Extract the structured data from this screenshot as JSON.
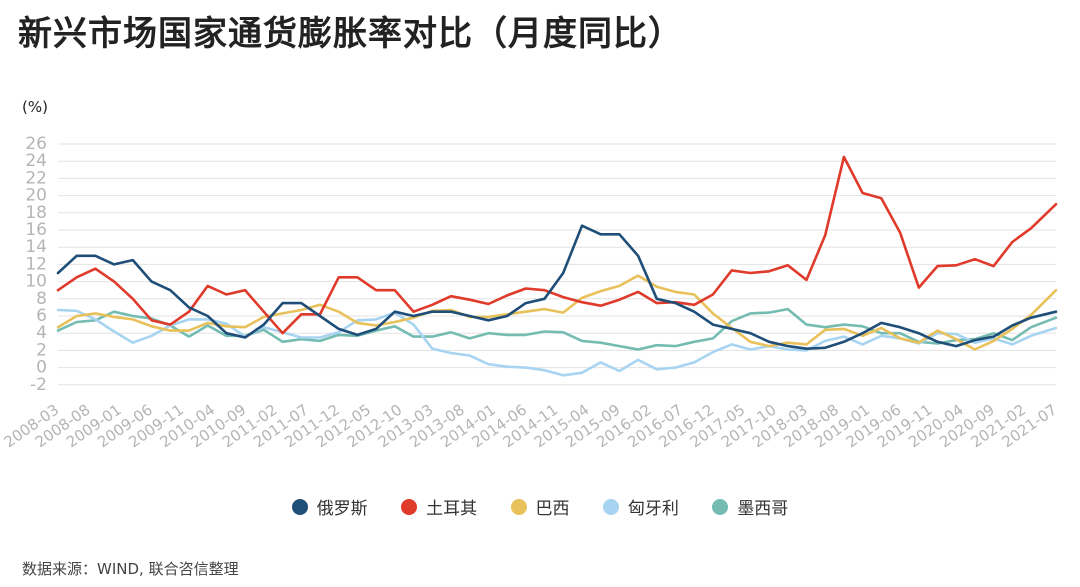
{
  "title": "新兴市场国家通货膨胀率对比（月度同比）",
  "source": "数据来源：WIND, 联合咨信整理",
  "colors": {
    "russia": "#1f4e79",
    "turkey": "#e03a2b",
    "brazil": "#e8c15a",
    "hungary": "#a7d4f0",
    "mexico": "#74bcb2"
  },
  "chart_data": {
    "type": "line",
    "ylabel": "(%)",
    "ylim": [
      -4,
      26
    ],
    "yticks": [
      -2,
      0,
      2,
      4,
      6,
      8,
      10,
      12,
      14,
      16,
      18,
      20,
      22,
      24,
      26
    ],
    "grid": "horizontal",
    "legend_position": "bottom",
    "x_start": "2008-03",
    "x_end": "2021-07",
    "x_tick_labels": [
      "2008-03",
      "2008-08",
      "2009-01",
      "2009-06",
      "2009-11",
      "2010-04",
      "2010-09",
      "2011-02",
      "2011-07",
      "2011-12",
      "2012-05",
      "2012-10",
      "2013-03",
      "2013-08",
      "2014-01",
      "2014-06",
      "2014-11",
      "2015-04",
      "2015-09",
      "2016-02",
      "2016-07",
      "2016-12",
      "2017-05",
      "2017-10",
      "2018-03",
      "2018-08",
      "2019-01",
      "2019-06",
      "2019-11",
      "2020-04",
      "2020-09",
      "2021-02",
      "2021-07"
    ],
    "series": [
      {
        "name": "俄罗斯",
        "color_key": "russia",
        "x": [
          "2008-03",
          "2008-06",
          "2008-09",
          "2008-12",
          "2009-03",
          "2009-06",
          "2009-09",
          "2009-12",
          "2010-03",
          "2010-06",
          "2010-09",
          "2010-12",
          "2011-03",
          "2011-06",
          "2011-09",
          "2011-12",
          "2012-03",
          "2012-06",
          "2012-09",
          "2012-12",
          "2013-03",
          "2013-06",
          "2013-09",
          "2013-12",
          "2014-03",
          "2014-06",
          "2014-09",
          "2014-12",
          "2015-03",
          "2015-06",
          "2015-09",
          "2015-12",
          "2016-03",
          "2016-06",
          "2016-09",
          "2016-12",
          "2017-03",
          "2017-06",
          "2017-09",
          "2017-12",
          "2018-03",
          "2018-06",
          "2018-09",
          "2018-12",
          "2019-03",
          "2019-06",
          "2019-09",
          "2019-12",
          "2020-03",
          "2020-06",
          "2020-09",
          "2020-12",
          "2021-03",
          "2021-07"
        ],
        "values": [
          11.0,
          13.0,
          13.0,
          12.0,
          12.5,
          10.0,
          9.0,
          7.0,
          6.0,
          4.0,
          3.5,
          5.0,
          7.5,
          7.5,
          6.0,
          4.5,
          3.8,
          4.5,
          6.5,
          6.0,
          6.5,
          6.5,
          6.0,
          5.5,
          6.0,
          7.5,
          8.0,
          11.0,
          16.5,
          15.5,
          15.5,
          13.0,
          8.0,
          7.5,
          6.5,
          5.0,
          4.5,
          4.0,
          3.0,
          2.5,
          2.2,
          2.3,
          3.0,
          4.0,
          5.2,
          4.7,
          4.0,
          3.0,
          2.5,
          3.2,
          3.6,
          4.9,
          5.8,
          6.5
        ]
      },
      {
        "name": "土耳其",
        "color_key": "turkey",
        "x": [
          "2008-03",
          "2008-06",
          "2008-09",
          "2008-12",
          "2009-03",
          "2009-06",
          "2009-09",
          "2009-12",
          "2010-03",
          "2010-06",
          "2010-09",
          "2010-12",
          "2011-03",
          "2011-06",
          "2011-09",
          "2011-12",
          "2012-03",
          "2012-06",
          "2012-09",
          "2012-12",
          "2013-03",
          "2013-06",
          "2013-09",
          "2013-12",
          "2014-03",
          "2014-06",
          "2014-09",
          "2014-12",
          "2015-03",
          "2015-06",
          "2015-09",
          "2015-12",
          "2016-03",
          "2016-06",
          "2016-09",
          "2016-12",
          "2017-03",
          "2017-06",
          "2017-09",
          "2017-12",
          "2018-03",
          "2018-06",
          "2018-09",
          "2018-12",
          "2019-03",
          "2019-06",
          "2019-09",
          "2019-12",
          "2020-03",
          "2020-06",
          "2020-09",
          "2020-12",
          "2021-03",
          "2021-07"
        ],
        "values": [
          9.0,
          10.5,
          11.5,
          10.0,
          8.0,
          5.5,
          5.0,
          6.5,
          9.5,
          8.5,
          9.0,
          6.5,
          4.0,
          6.2,
          6.2,
          10.5,
          10.5,
          9.0,
          9.0,
          6.5,
          7.3,
          8.3,
          7.9,
          7.4,
          8.4,
          9.2,
          9.0,
          8.2,
          7.6,
          7.2,
          7.9,
          8.8,
          7.5,
          7.6,
          7.3,
          8.5,
          11.3,
          11.0,
          11.2,
          11.9,
          10.2,
          15.4,
          24.5,
          20.3,
          19.7,
          15.7,
          9.3,
          11.8,
          11.9,
          12.6,
          11.8,
          14.6,
          16.2,
          19.0
        ]
      },
      {
        "name": "巴西",
        "color_key": "brazil",
        "x": [
          "2008-03",
          "2008-06",
          "2008-09",
          "2008-12",
          "2009-03",
          "2009-06",
          "2009-09",
          "2009-12",
          "2010-03",
          "2010-06",
          "2010-09",
          "2010-12",
          "2011-03",
          "2011-06",
          "2011-09",
          "2011-12",
          "2012-03",
          "2012-06",
          "2012-09",
          "2012-12",
          "2013-03",
          "2013-06",
          "2013-09",
          "2013-12",
          "2014-03",
          "2014-06",
          "2014-09",
          "2014-12",
          "2015-03",
          "2015-06",
          "2015-09",
          "2015-12",
          "2016-03",
          "2016-06",
          "2016-09",
          "2016-12",
          "2017-03",
          "2017-06",
          "2017-09",
          "2017-12",
          "2018-03",
          "2018-06",
          "2018-09",
          "2018-12",
          "2019-03",
          "2019-06",
          "2019-09",
          "2019-12",
          "2020-03",
          "2020-06",
          "2020-09",
          "2020-12",
          "2021-03",
          "2021-07"
        ],
        "values": [
          4.7,
          6.0,
          6.3,
          5.9,
          5.6,
          4.8,
          4.3,
          4.3,
          5.2,
          4.8,
          4.7,
          5.9,
          6.3,
          6.7,
          7.3,
          6.5,
          5.2,
          4.9,
          5.3,
          5.8,
          6.6,
          6.7,
          5.9,
          5.9,
          6.2,
          6.5,
          6.8,
          6.4,
          8.1,
          8.9,
          9.5,
          10.7,
          9.4,
          8.8,
          8.5,
          6.3,
          4.6,
          3.0,
          2.5,
          2.9,
          2.7,
          4.4,
          4.5,
          3.7,
          4.6,
          3.4,
          2.9,
          4.3,
          3.3,
          2.1,
          3.1,
          4.5,
          6.1,
          9.0
        ]
      },
      {
        "name": "匈牙利",
        "color_key": "hungary",
        "x": [
          "2008-03",
          "2008-06",
          "2008-09",
          "2008-12",
          "2009-03",
          "2009-06",
          "2009-09",
          "2009-12",
          "2010-03",
          "2010-06",
          "2010-09",
          "2010-12",
          "2011-03",
          "2011-06",
          "2011-09",
          "2011-12",
          "2012-03",
          "2012-06",
          "2012-09",
          "2012-12",
          "2013-03",
          "2013-06",
          "2013-09",
          "2013-12",
          "2014-03",
          "2014-06",
          "2014-09",
          "2014-12",
          "2015-03",
          "2015-06",
          "2015-09",
          "2015-12",
          "2016-03",
          "2016-06",
          "2016-09",
          "2016-12",
          "2017-03",
          "2017-06",
          "2017-09",
          "2017-12",
          "2018-03",
          "2018-06",
          "2018-09",
          "2018-12",
          "2019-03",
          "2019-06",
          "2019-09",
          "2019-12",
          "2020-03",
          "2020-06",
          "2020-09",
          "2020-12",
          "2021-03",
          "2021-07"
        ],
        "values": [
          6.7,
          6.6,
          5.6,
          4.2,
          2.9,
          3.7,
          4.9,
          5.6,
          5.6,
          5.1,
          3.6,
          4.7,
          4.1,
          3.5,
          3.5,
          4.1,
          5.5,
          5.6,
          6.4,
          5.0,
          2.2,
          1.7,
          1.4,
          0.4,
          0.1,
          0.0,
          -0.3,
          -0.9,
          -0.6,
          0.6,
          -0.4,
          0.9,
          -0.2,
          0.0,
          0.6,
          1.8,
          2.7,
          2.1,
          2.5,
          2.1,
          2.0,
          3.1,
          3.6,
          2.7,
          3.7,
          3.4,
          2.8,
          4.0,
          3.9,
          2.9,
          3.4,
          2.7,
          3.7,
          4.6
        ]
      },
      {
        "name": "墨西哥",
        "color_key": "mexico",
        "x": [
          "2008-03",
          "2008-06",
          "2008-09",
          "2008-12",
          "2009-03",
          "2009-06",
          "2009-09",
          "2009-12",
          "2010-03",
          "2010-06",
          "2010-09",
          "2010-12",
          "2011-03",
          "2011-06",
          "2011-09",
          "2011-12",
          "2012-03",
          "2012-06",
          "2012-09",
          "2012-12",
          "2013-03",
          "2013-06",
          "2013-09",
          "2013-12",
          "2014-03",
          "2014-06",
          "2014-09",
          "2014-12",
          "2015-03",
          "2015-06",
          "2015-09",
          "2015-12",
          "2016-03",
          "2016-06",
          "2016-09",
          "2016-12",
          "2017-03",
          "2017-06",
          "2017-09",
          "2017-12",
          "2018-03",
          "2018-06",
          "2018-09",
          "2018-12",
          "2019-03",
          "2019-06",
          "2019-09",
          "2019-12",
          "2020-03",
          "2020-06",
          "2020-09",
          "2020-12",
          "2021-03",
          "2021-07"
        ],
        "values": [
          4.3,
          5.3,
          5.5,
          6.5,
          6.0,
          5.7,
          4.9,
          3.6,
          4.9,
          3.7,
          3.7,
          4.4,
          3.0,
          3.3,
          3.1,
          3.8,
          3.7,
          4.3,
          4.8,
          3.6,
          3.6,
          4.1,
          3.4,
          4.0,
          3.8,
          3.8,
          4.2,
          4.1,
          3.1,
          2.9,
          2.5,
          2.1,
          2.6,
          2.5,
          3.0,
          3.4,
          5.4,
          6.3,
          6.4,
          6.8,
          5.0,
          4.7,
          5.0,
          4.8,
          4.0,
          4.0,
          3.0,
          2.8,
          3.2,
          3.3,
          4.0,
          3.2,
          4.7,
          5.8
        ]
      }
    ]
  }
}
